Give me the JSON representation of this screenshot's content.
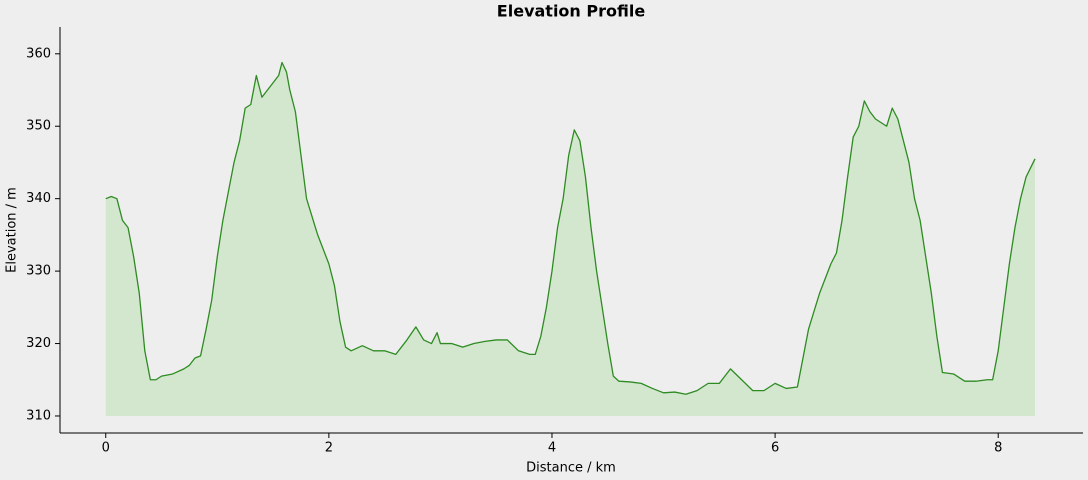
{
  "chart_data": {
    "type": "area",
    "title": "Elevation Profile",
    "x_label": "Distance / km",
    "y_label": "Elevation / m",
    "series": [
      {
        "color": "#2e8b22",
        "fill": "#d3e7cf",
        "x": [
          0,
          0.05,
          0.1,
          0.15,
          0.2,
          0.25,
          0.3,
          0.35,
          0.4,
          0.45,
          0.5,
          0.6,
          0.7,
          0.75,
          0.8,
          0.85,
          0.9,
          0.95,
          1.0,
          1.05,
          1.1,
          1.15,
          1.2,
          1.25,
          1.3,
          1.35,
          1.4,
          1.45,
          1.5,
          1.55,
          1.58,
          1.62,
          1.65,
          1.7,
          1.75,
          1.8,
          1.85,
          1.9,
          1.95,
          2.0,
          2.05,
          2.1,
          2.15,
          2.2,
          2.3,
          2.4,
          2.5,
          2.6,
          2.7,
          2.78,
          2.85,
          2.92,
          2.97,
          3.0,
          3.1,
          3.2,
          3.3,
          3.4,
          3.5,
          3.6,
          3.7,
          3.8,
          3.85,
          3.9,
          3.95,
          4.0,
          4.05,
          4.1,
          4.15,
          4.2,
          4.25,
          4.3,
          4.35,
          4.4,
          4.45,
          4.5,
          4.55,
          4.6,
          4.7,
          4.8,
          4.9,
          5.0,
          5.1,
          5.2,
          5.3,
          5.4,
          5.5,
          5.6,
          5.7,
          5.8,
          5.9,
          6.0,
          6.1,
          6.2,
          6.25,
          6.3,
          6.4,
          6.5,
          6.55,
          6.6,
          6.65,
          6.7,
          6.75,
          6.8,
          6.85,
          6.9,
          6.95,
          7.0,
          7.05,
          7.1,
          7.15,
          7.2,
          7.25,
          7.3,
          7.35,
          7.4,
          7.45,
          7.5,
          7.6,
          7.7,
          7.8,
          7.9,
          7.95,
          8.0,
          8.05,
          8.1,
          8.15,
          8.2,
          8.25,
          8.33
        ],
        "values": [
          340,
          340.3,
          340,
          337,
          336,
          332,
          327,
          319,
          315,
          315,
          315.5,
          315.8,
          316.5,
          317,
          318,
          318.3,
          322,
          326,
          332,
          337,
          341,
          345,
          348,
          352.5,
          353,
          357,
          354,
          355,
          356,
          357,
          358.8,
          357.5,
          355,
          352,
          346,
          340,
          337.5,
          335,
          333,
          331,
          328,
          323,
          319.5,
          319,
          319.7,
          319,
          319,
          318.5,
          320.5,
          322.3,
          320.5,
          320,
          321.5,
          320,
          320,
          319.5,
          320,
          320.3,
          320.5,
          320.5,
          319,
          318.5,
          318.5,
          321,
          325,
          330,
          336,
          340,
          346,
          349.5,
          348,
          343,
          336,
          330,
          325,
          320,
          315.5,
          314.8,
          314.7,
          314.5,
          313.8,
          313.2,
          313.3,
          313,
          313.5,
          314.5,
          314.5,
          316.5,
          315,
          313.5,
          313.5,
          314.5,
          313.8,
          314,
          318,
          322,
          327,
          331,
          332.5,
          337,
          343,
          348.5,
          350,
          353.5,
          352,
          351,
          350.5,
          350,
          352.5,
          351,
          348,
          345,
          340,
          337,
          332,
          327,
          321,
          316,
          315.8,
          314.8,
          314.8,
          315,
          315,
          319,
          325,
          331,
          336,
          340,
          343,
          345.5
        ]
      }
    ],
    "fill_to": 310,
    "xlim": [
      -0.41,
      8.76
    ],
    "ylim": [
      307.65,
      363.7
    ],
    "xticks": [
      0,
      2,
      4,
      6,
      8
    ],
    "yticks": [
      310,
      320,
      330,
      340,
      350,
      360
    ]
  }
}
